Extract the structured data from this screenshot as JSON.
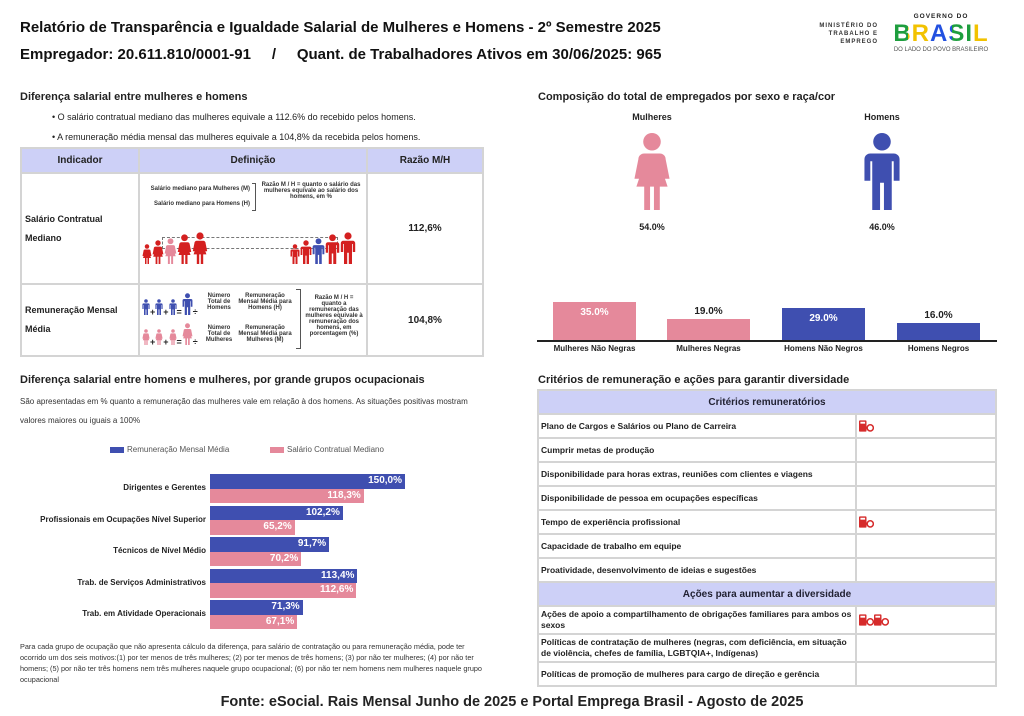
{
  "header": {
    "title": "Relatório de Transparência e Igualdade Salarial de Mulheres e Homens - 2º Semestre 2025",
    "employer": "Empregador: 20.611.810/0001-91     /     Quant. de Trabalhadores Ativos em 30/06/2025: 965"
  },
  "logos": {
    "ministry": "MINISTÉRIO DO TRABALHO E EMPREGO",
    "gov_top": "GOVERNO DO",
    "gov_main": "BRASIL",
    "gov_sub": "DO LADO DO POVO BRASILEIRO"
  },
  "salary_diff": {
    "title": "Diferença salarial entre mulheres e homens",
    "bullets": [
      "• O salário contratual mediano das mulheres equivale a 112.6% do recebido pelos homens.",
      "• A remuneração média mensal das mulheres equivale a 104,8% da recebida pelos homens."
    ],
    "table": {
      "headers": [
        "Indicador",
        "Definição",
        "Razão M/H"
      ],
      "rows": [
        {
          "indicator": "Salário Contratual Mediano",
          "ratio": "112,6%",
          "def_a": "Salário mediano para Mulheres (M)",
          "def_b": "Salário mediano para Homens (H)",
          "def_c": "Razão M / H = quanto o salário das mulheres equivale ao salário dos homens, em %"
        },
        {
          "indicator": "Remuneração Mensal Média",
          "ratio": "104,8%",
          "def_a": "Número Total de Homens",
          "def_b": "Remuneração Mensal Média para Homens (H)",
          "def_c": "Número Total de Mulheres",
          "def_d": "Remuneração Mensal Média para Mulheres (M)",
          "def_e": "Razão M / H = quanto a remuneração das mulheres equivale à remuneração dos homens, em porcentagem (%)"
        }
      ]
    }
  },
  "composition": {
    "title": "Composição do total de empregados por sexo e raça/cor",
    "women_label": "Mulheres",
    "men_label": "Homens",
    "women_pct": "54.0%",
    "men_pct": "46.0%"
  },
  "chart_data": [
    {
      "type": "bar",
      "categories": [
        "Mulheres Não Negras",
        "Mulheres Negras",
        "Homens Não Negros",
        "Homens Negros"
      ],
      "values": [
        35.0,
        19.0,
        29.0,
        16.0
      ],
      "labels": [
        "35.0%",
        "19.0%",
        "29.0%",
        "16.0%"
      ],
      "colors": [
        "#e5899b",
        "#e5899b",
        "#3f4fb0",
        "#3f4fb0"
      ]
    },
    {
      "type": "bar",
      "orientation": "horizontal",
      "title": "Diferença salarial entre homens e mulheres, por grande grupos ocupacionais",
      "categories": [
        "Dirigentes e Gerentes",
        "Profissionais em Ocupações Nível Superior",
        "Técnicos de Nível Médio",
        "Trab. de Serviços Administrativos",
        "Trab. em Atividade Operacionais"
      ],
      "series": [
        {
          "name": "Remuneração Mensal Média",
          "color": "#3f4fb0",
          "values": [
            150.0,
            102.2,
            91.7,
            113.4,
            71.3
          ],
          "labels": [
            "150,0%",
            "102,2%",
            "91,7%",
            "113,4%",
            "71,3%"
          ]
        },
        {
          "name": "Salário Contratual Mediano",
          "color": "#e5899b",
          "values": [
            118.3,
            65.2,
            70.2,
            112.6,
            67.1
          ],
          "labels": [
            "118,3%",
            "65,2%",
            "70,2%",
            "112,6%",
            "67,1%"
          ]
        }
      ],
      "legend": "top"
    }
  ],
  "occupational": {
    "desc": "São apresentadas em % quanto a remuneração das mulheres vale em relação à dos homens. As situações positivas mostram valores maiores ou iguais a 100%",
    "footnote": "Para cada grupo de ocupação que não apresenta cálculo da diferença, para salário de contratação ou para remuneração média, pode ter ocorrido um dos seis motivos:(1) por ter menos de três mulheres; (2) por ter menos de três homens; (3) por não ter mulheres; (4) por não ter homens; (5) por não ter três homens nem três mulheres naquele grupo ocupacional; (6) por não ter nem homens nem mulheres naquele grupo ocupacional"
  },
  "criteria": {
    "title": "Critérios de remuneração e ações para garantir diversidade",
    "header1": "Critérios remuneratórios",
    "items1": [
      {
        "label": "Plano de Cargos e Salários ou Plano de Carreira",
        "icons": 1
      },
      {
        "label": "Cumprir metas de produção",
        "icons": 0
      },
      {
        "label": "Disponibilidade para horas extras, reuniões com clientes e viagens",
        "icons": 0
      },
      {
        "label": "Disponibilidade de pessoa em ocupações específicas",
        "icons": 0
      },
      {
        "label": "Tempo de experiência profissional",
        "icons": 1
      },
      {
        "label": "Capacidade de trabalho em equipe",
        "icons": 0
      },
      {
        "label": "Proatividade, desenvolvimento de ideias e sugestões",
        "icons": 0
      }
    ],
    "header2": "Ações para aumentar a diversidade",
    "items2": [
      {
        "label": "Ações de apoio a compartilhamento de obrigações familiares para ambos os sexos",
        "icons": 2
      },
      {
        "label": "Políticas de contratação de mulheres (negras, com deficiência, em situação de violência, chefes de família, LGBTQIA+, Indígenas)",
        "icons": 0
      },
      {
        "label": "Políticas de promoção de mulheres para cargo de direção e gerência",
        "icons": 0
      }
    ],
    "icon": "company-check-icon",
    "icon_color": "#d62b2b"
  },
  "footer": "Fonte: eSocial. Rais Mensal Junho de 2025 e Portal Emprega Brasil - Agosto de 2025"
}
